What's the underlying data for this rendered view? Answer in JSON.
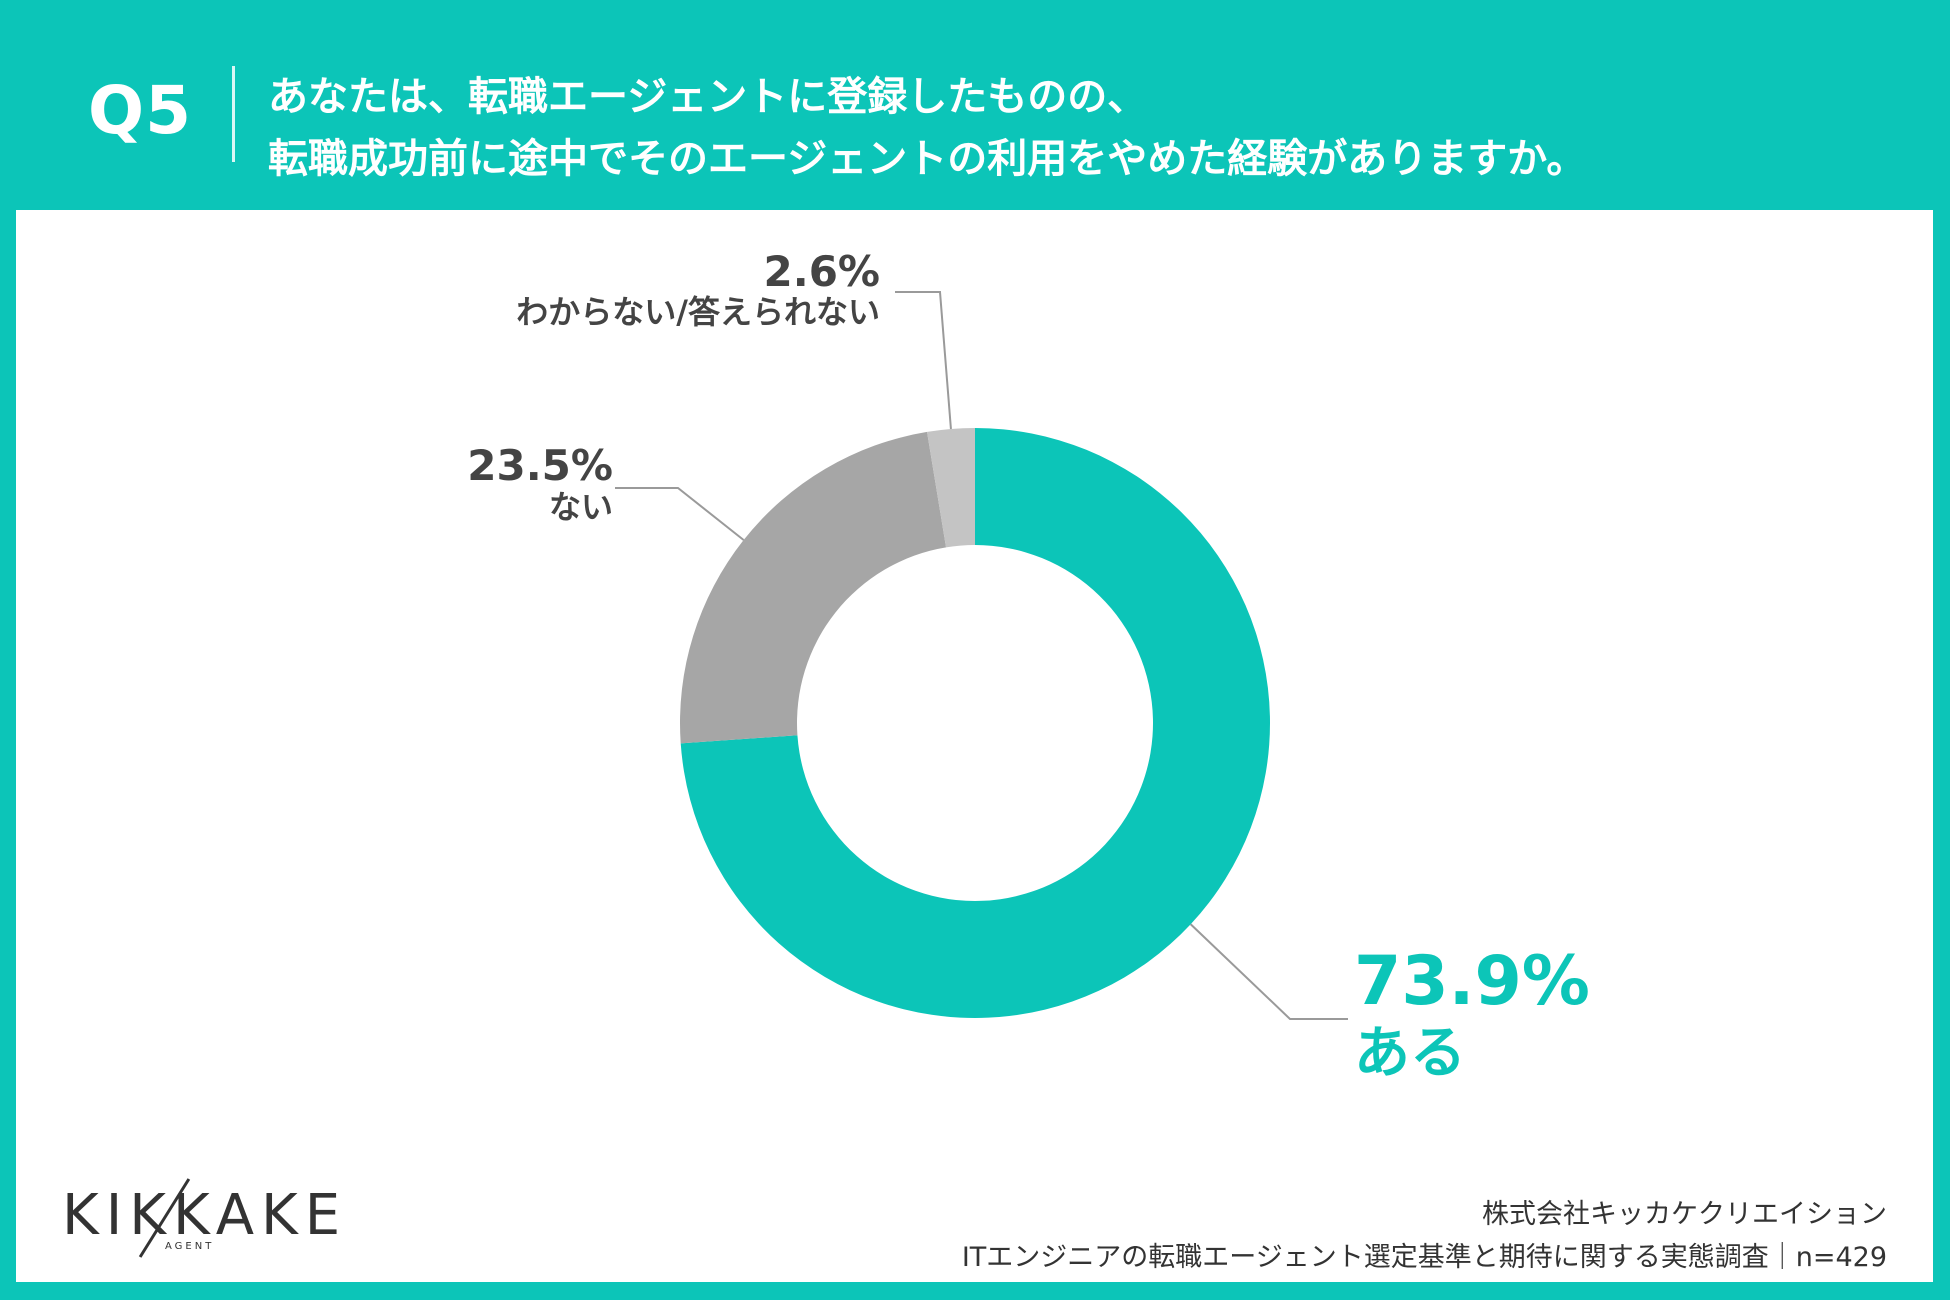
{
  "header": {
    "question_number": "Q5",
    "question_line1": "あなたは、転職エージェントに登録したものの、",
    "question_line2": "転職成功前に途中でそのエージェントの利用をやめた経験がありますか。"
  },
  "chart_data": {
    "type": "pie",
    "donut": true,
    "categories": [
      "ある",
      "ない",
      "わからない/答えられない"
    ],
    "values": [
      73.9,
      23.5,
      2.6
    ],
    "value_labels": [
      "73.9%",
      "23.5%",
      "2.6%"
    ],
    "colors": [
      "#0cc5b8",
      "#a6a6a6",
      "#c4c4c4"
    ],
    "unit": "%"
  },
  "footer": {
    "logo_text": "KIKKAKE",
    "logo_sub": "AGENT",
    "company": "株式会社キッカケクリエイション",
    "survey": "ITエンジニアの転職エージェント選定基準と期待に関する実態調査｜n=429"
  },
  "colors": {
    "accent": "#0cc5b8",
    "text": "#444444"
  }
}
